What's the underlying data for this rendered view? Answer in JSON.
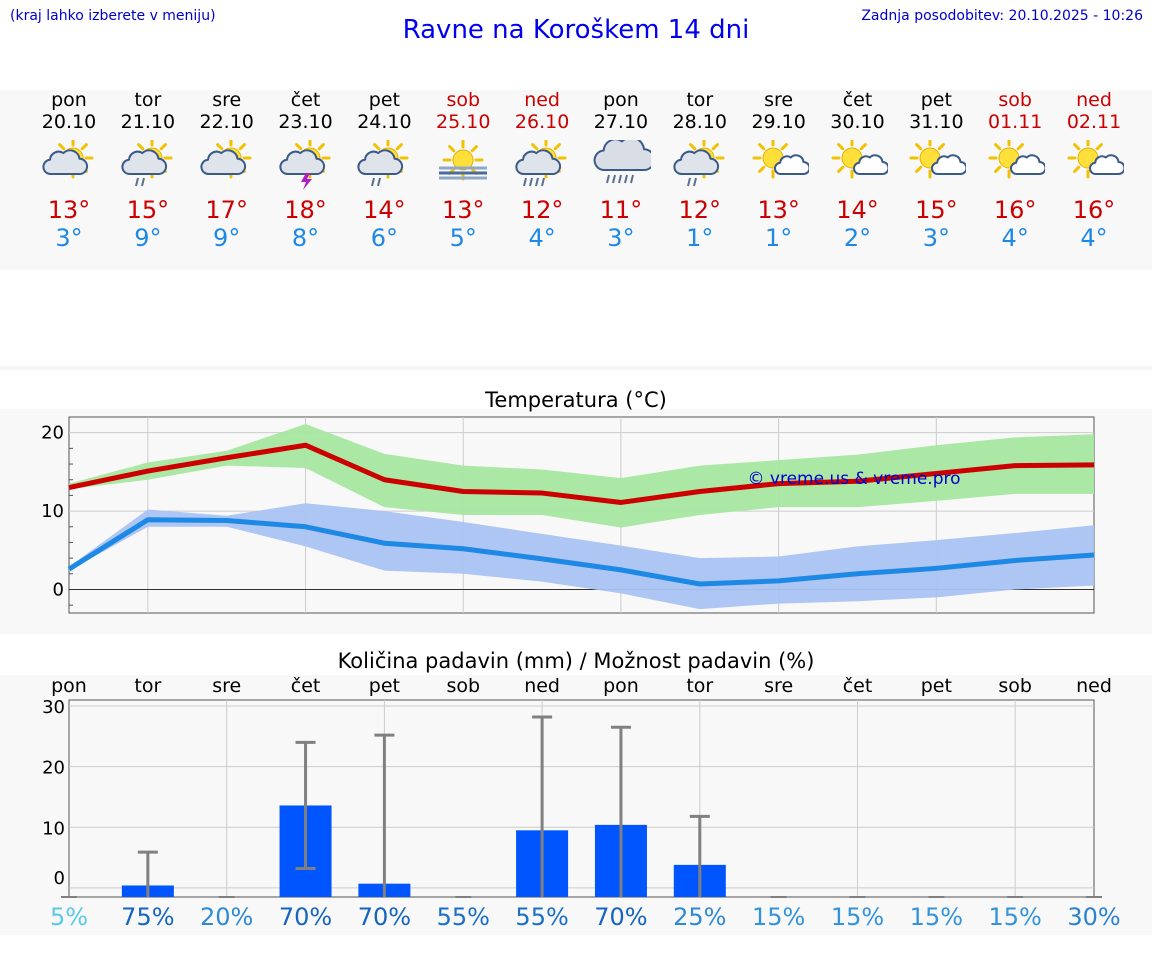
{
  "header": {
    "hint": "(kraj lahko izberete v meniju)",
    "title": "Ravne na Koroškem 14 dni",
    "updated_label": "Zadnja posodobitev:",
    "updated_value": "20.10.2025 - 10:26"
  },
  "colors": {
    "max_temp": "#cc0000",
    "min_temp": "#1e88e5",
    "max_band": "#a6e6a0",
    "min_band": "#a9c3f2",
    "bar": "#0055ff",
    "errorbar": "#808080",
    "watermark": "#0000cc"
  },
  "days": [
    {
      "name": "pon",
      "date": "20.10",
      "weekend": false,
      "icon": "sun-cloud-icon",
      "max": "13°",
      "min": "3°"
    },
    {
      "name": "tor",
      "date": "21.10",
      "weekend": false,
      "icon": "sun-cloud-rain-icon",
      "max": "15°",
      "min": "9°"
    },
    {
      "name": "sre",
      "date": "22.10",
      "weekend": false,
      "icon": "sun-cloud-icon",
      "max": "17°",
      "min": "9°"
    },
    {
      "name": "čet",
      "date": "23.10",
      "weekend": false,
      "icon": "sun-cloud-thunder-icon",
      "max": "18°",
      "min": "8°"
    },
    {
      "name": "pet",
      "date": "24.10",
      "weekend": false,
      "icon": "sun-cloud-rain-icon",
      "max": "14°",
      "min": "6°"
    },
    {
      "name": "sob",
      "date": "25.10",
      "weekend": true,
      "icon": "sun-fog-icon",
      "max": "13°",
      "min": "5°"
    },
    {
      "name": "ned",
      "date": "26.10",
      "weekend": true,
      "icon": "sun-cloud-heavy-rain-icon",
      "max": "12°",
      "min": "4°"
    },
    {
      "name": "pon",
      "date": "27.10",
      "weekend": false,
      "icon": "cloud-heavy-rain-icon",
      "max": "11°",
      "min": "3°"
    },
    {
      "name": "tor",
      "date": "28.10",
      "weekend": false,
      "icon": "sun-cloud-rain-icon",
      "max": "12°",
      "min": "1°"
    },
    {
      "name": "sre",
      "date": "29.10",
      "weekend": false,
      "icon": "sun-small-cloud-icon",
      "max": "13°",
      "min": "1°"
    },
    {
      "name": "čet",
      "date": "30.10",
      "weekend": false,
      "icon": "sun-small-cloud-icon",
      "max": "14°",
      "min": "2°"
    },
    {
      "name": "pet",
      "date": "31.10",
      "weekend": false,
      "icon": "sun-small-cloud-icon",
      "max": "15°",
      "min": "3°"
    },
    {
      "name": "sob",
      "date": "01.11",
      "weekend": true,
      "icon": "sun-small-cloud-icon",
      "max": "16°",
      "min": "4°"
    },
    {
      "name": "ned",
      "date": "02.11",
      "weekend": true,
      "icon": "sun-small-cloud-icon",
      "max": "16°",
      "min": "4°"
    }
  ],
  "chart_data": [
    {
      "type": "line",
      "title": "Temperatura (°C)",
      "watermark": "© vreme.us & vreme.pro",
      "xlabel": "",
      "ylabel": "",
      "ylim": [
        -3,
        22
      ],
      "yticks": [
        0,
        10,
        20
      ],
      "grid": true,
      "series": [
        {
          "name": "max",
          "values": [
            13.0,
            15.1,
            16.8,
            18.4,
            14.0,
            12.5,
            12.3,
            11.1,
            12.5,
            13.5,
            13.8,
            14.8,
            15.8,
            15.9
          ],
          "band_low": [
            12.8,
            14.0,
            15.8,
            15.5,
            10.5,
            9.5,
            9.5,
            7.9,
            9.5,
            10.5,
            10.5,
            11.3,
            12.2,
            12.2
          ],
          "band_high": [
            13.5,
            16.2,
            17.7,
            21.1,
            17.3,
            15.8,
            15.3,
            14.2,
            15.8,
            16.5,
            17.2,
            18.4,
            19.4,
            19.8
          ]
        },
        {
          "name": "min",
          "values": [
            2.6,
            8.9,
            8.8,
            8.0,
            5.9,
            5.2,
            3.9,
            2.5,
            0.7,
            1.1,
            2.0,
            2.7,
            3.7,
            4.4
          ],
          "band_low": [
            2.4,
            8.0,
            8.0,
            5.5,
            2.4,
            2.0,
            1.0,
            -0.5,
            -2.5,
            -1.8,
            -1.5,
            -1.0,
            0.0,
            0.5
          ],
          "band_high": [
            2.9,
            10.2,
            9.4,
            11.0,
            10.0,
            8.6,
            7.1,
            5.6,
            4.0,
            4.2,
            5.5,
            6.3,
            7.2,
            8.2
          ]
        }
      ]
    },
    {
      "type": "bar",
      "title": "Količina padavin (mm) / Možnost padavin (%)",
      "categories": [
        "pon",
        "tor",
        "sre",
        "čet",
        "pet",
        "sob",
        "ned",
        "pon",
        "tor",
        "sre",
        "čet",
        "pet",
        "sob",
        "ned"
      ],
      "ylim": [
        -1.5,
        31
      ],
      "yticks": [
        0,
        10,
        20,
        30
      ],
      "ytick_labels": [
        "0",
        "10",
        "20",
        "30"
      ],
      "grid": true,
      "values": [
        0,
        0.4,
        0,
        13.6,
        0.7,
        0,
        9.5,
        10.4,
        3.8,
        0,
        0,
        0,
        0,
        0
      ],
      "err_low": [
        0,
        0,
        0,
        3.2,
        0,
        0,
        0,
        0,
        0,
        0,
        0,
        0,
        0,
        0
      ],
      "err_high": [
        0,
        5.9,
        0,
        24.0,
        25.2,
        0,
        28.2,
        26.5,
        11.8,
        0,
        0,
        0,
        0,
        0
      ],
      "probability_labels": [
        "5%",
        "75%",
        "20%",
        "70%",
        "70%",
        "55%",
        "55%",
        "70%",
        "25%",
        "15%",
        "15%",
        "15%",
        "15%",
        "30%"
      ],
      "probability_colors": [
        "#5bc8e8",
        "#1565c0",
        "#2e8ad6",
        "#1565c0",
        "#1565c0",
        "#1a6fc9",
        "#1a6fc9",
        "#1565c0",
        "#2e8ad6",
        "#3393dc",
        "#3393dc",
        "#3393dc",
        "#3393dc",
        "#2a82d1"
      ]
    }
  ]
}
